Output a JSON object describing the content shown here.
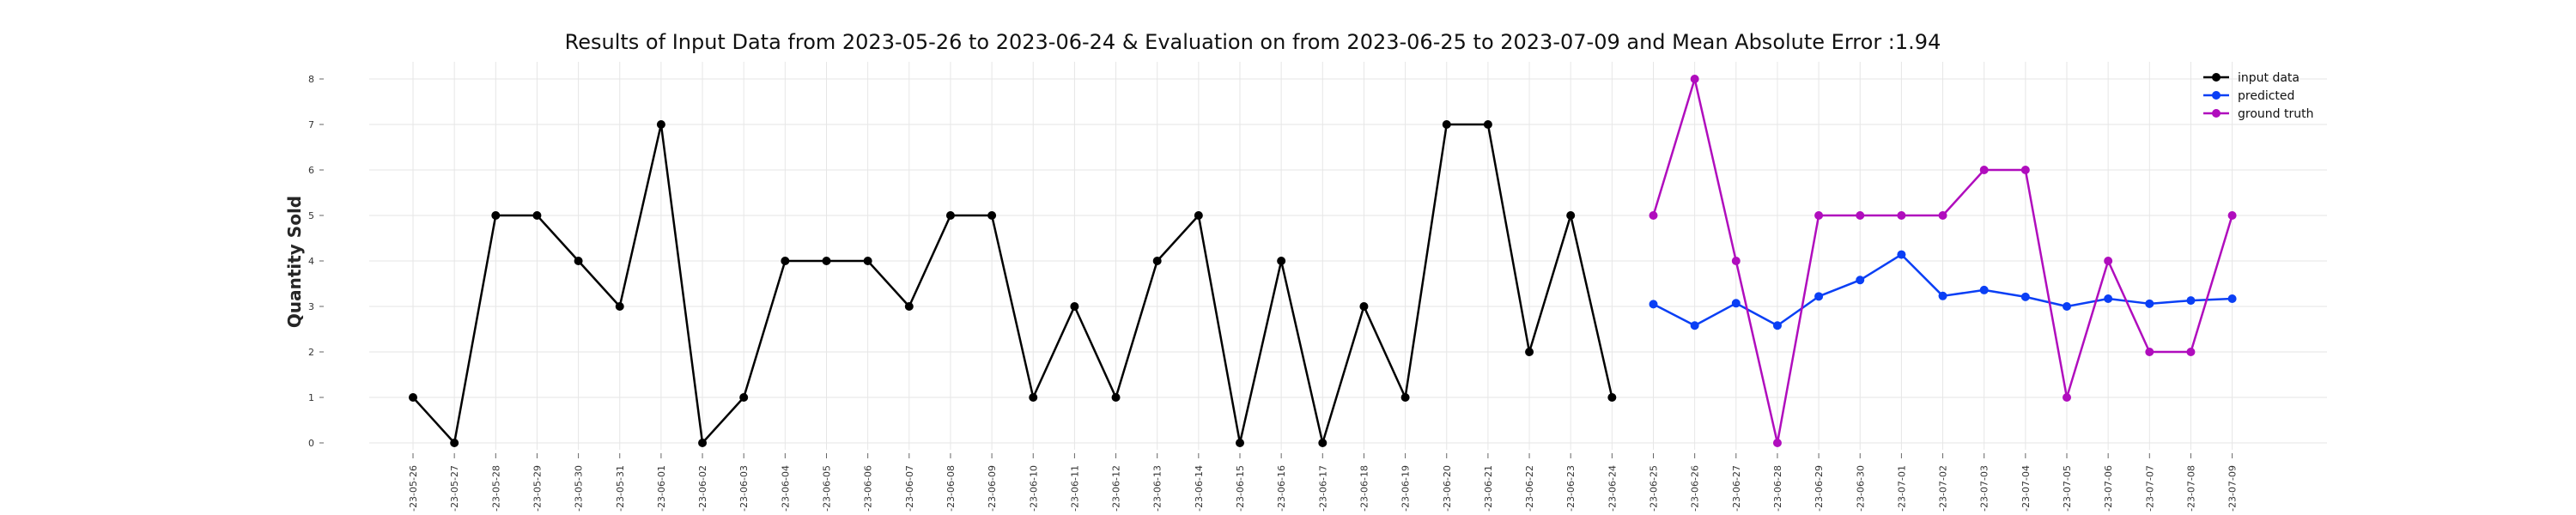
{
  "chart_data": {
    "type": "line",
    "title": "Results of Input Data from 2023-05-26 to 2023-06-24 & Evaluation on from 2023-06-25 to 2023-07-09 and Mean Absolute Error  :1.94",
    "xlabel": "",
    "ylabel": "Quantity Sold",
    "ylim": [
      0,
      8
    ],
    "yticks": [
      "0",
      "1",
      "2",
      "3",
      "4",
      "5",
      "6",
      "7",
      "8"
    ],
    "grid": true,
    "legend_position": "top-right",
    "dates": [
      "2023-05-26",
      "2023-05-27",
      "2023-05-28",
      "2023-05-29",
      "2023-05-30",
      "2023-05-31",
      "2023-06-01",
      "2023-06-02",
      "2023-06-03",
      "2023-06-04",
      "2023-06-05",
      "2023-06-06",
      "2023-06-07",
      "2023-06-08",
      "2023-06-09",
      "2023-06-10",
      "2023-06-11",
      "2023-06-12",
      "2023-06-13",
      "2023-06-14",
      "2023-06-15",
      "2023-06-16",
      "2023-06-17",
      "2023-06-18",
      "2023-06-19",
      "2023-06-20",
      "2023-06-21",
      "2023-06-22",
      "2023-06-23",
      "2023-06-24",
      "2023-06-25",
      "2023-06-26",
      "2023-06-27",
      "2023-06-28",
      "2023-06-29",
      "2023-06-30",
      "2023-07-01",
      "2023-07-02",
      "2023-07-03",
      "2023-07-04",
      "2023-07-05",
      "2023-07-06",
      "2023-07-07",
      "2023-07-08",
      "2023-07-09"
    ],
    "xtick_labels": [
      "-23-05-26",
      "-23-05-27",
      "-23-05-28",
      "-23-05-29",
      "-23-05-30",
      "-23-05-31",
      "-23-06-01",
      "-23-06-02",
      "-23-06-03",
      "-23-06-04",
      "-23-06-05",
      "-23-06-06",
      "-23-06-07",
      "-23-06-08",
      "-23-06-09",
      "-23-06-10",
      "-23-06-11",
      "-23-06-12",
      "-23-06-13",
      "-23-06-14",
      "-23-06-15",
      "-23-06-16",
      "-23-06-17",
      "-23-06-18",
      "-23-06-19",
      "-23-06-20",
      "-23-06-21",
      "-23-06-22",
      "-23-06-23",
      "-23-06-24",
      "-23-06-25",
      "-23-06-26",
      "-23-06-27",
      "-23-06-28",
      "-23-06-29",
      "-23-06-30",
      "-23-07-01",
      "-23-07-02",
      "-23-07-03",
      "-23-07-04",
      "-23-07-05",
      "-23-07-06",
      "-23-07-07",
      "-23-07-08",
      "-23-07-09"
    ],
    "series": [
      {
        "name": "input data",
        "color": "#000000",
        "x": [
          "2023-05-26",
          "2023-05-27",
          "2023-05-28",
          "2023-05-29",
          "2023-05-30",
          "2023-05-31",
          "2023-06-01",
          "2023-06-02",
          "2023-06-03",
          "2023-06-04",
          "2023-06-05",
          "2023-06-06",
          "2023-06-07",
          "2023-06-08",
          "2023-06-09",
          "2023-06-10",
          "2023-06-11",
          "2023-06-12",
          "2023-06-13",
          "2023-06-14",
          "2023-06-15",
          "2023-06-16",
          "2023-06-17",
          "2023-06-18",
          "2023-06-19",
          "2023-06-20",
          "2023-06-21",
          "2023-06-22",
          "2023-06-23",
          "2023-06-24"
        ],
        "values": [
          1,
          0,
          5,
          5,
          4,
          3,
          7,
          0,
          1,
          4,
          4,
          4,
          3,
          5,
          5,
          1,
          3,
          1,
          4,
          5,
          0,
          4,
          0,
          3,
          1,
          7,
          7,
          2,
          5,
          1
        ]
      },
      {
        "name": "predicted",
        "color": "#0a3ff5",
        "x": [
          "2023-06-25",
          "2023-06-26",
          "2023-06-27",
          "2023-06-28",
          "2023-06-29",
          "2023-06-30",
          "2023-07-01",
          "2023-07-02",
          "2023-07-03",
          "2023-07-04",
          "2023-07-05",
          "2023-07-06",
          "2023-07-07",
          "2023-07-08",
          "2023-07-09"
        ],
        "values": [
          3.05,
          2.58,
          3.07,
          2.58,
          3.22,
          3.58,
          4.14,
          3.23,
          3.36,
          3.21,
          3.0,
          3.17,
          3.06,
          3.13,
          3.17
        ]
      },
      {
        "name": "ground truth",
        "color": "#b00dbd",
        "x": [
          "2023-06-25",
          "2023-06-26",
          "2023-06-27",
          "2023-06-28",
          "2023-06-29",
          "2023-06-30",
          "2023-07-01",
          "2023-07-02",
          "2023-07-03",
          "2023-07-04",
          "2023-07-05",
          "2023-07-06",
          "2023-07-07",
          "2023-07-08",
          "2023-07-09"
        ],
        "values": [
          5,
          8,
          4,
          0,
          5,
          5,
          5,
          5,
          6,
          6,
          1,
          4,
          2,
          2,
          5
        ]
      }
    ]
  }
}
